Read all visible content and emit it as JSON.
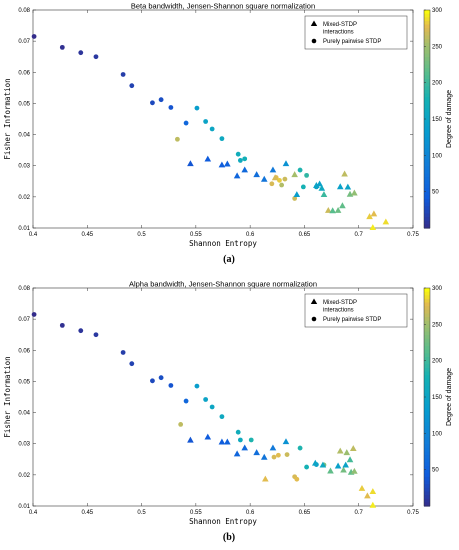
{
  "chart_data": [
    {
      "type": "scatter",
      "title": "Beta bandwidth, Jensen-Shannon square normalization",
      "xlabel": "Shannon Entropy",
      "ylabel": "Fisher Information",
      "xlim": [
        0.4,
        0.75
      ],
      "ylim": [
        0.01,
        0.08
      ],
      "xticks": [
        "0.4",
        "0.45",
        "0.5",
        "0.55",
        "0.6",
        "0.65",
        "0.7",
        "0.75"
      ],
      "yticks": [
        "0.01",
        "0.02",
        "0.03",
        "0.04",
        "0.05",
        "0.06",
        "0.07",
        "0.08"
      ],
      "colorbar": {
        "label": "Degree of damage",
        "range": [
          0,
          300
        ],
        "ticks": [
          "50",
          "100",
          "150",
          "200",
          "250",
          "300"
        ]
      },
      "legend": {
        "position": "top-right",
        "items": [
          "Mixed-STDP interactions",
          "Purely pairwise STDP"
        ]
      },
      "caption": "(a)",
      "series": [
        {
          "name": "Purely pairwise STDP",
          "marker": "circle",
          "points": [
            [
              0.401,
              0.0715,
              2
            ],
            [
              0.427,
              0.068,
              5
            ],
            [
              0.444,
              0.0663,
              10
            ],
            [
              0.458,
              0.065,
              13
            ],
            [
              0.483,
              0.0593,
              18
            ],
            [
              0.491,
              0.0557,
              22
            ],
            [
              0.51,
              0.0502,
              28
            ],
            [
              0.518,
              0.0512,
              32
            ],
            [
              0.527,
              0.0487,
              38
            ],
            [
              0.533,
              0.0385,
              265
            ],
            [
              0.541,
              0.0437,
              60
            ],
            [
              0.551,
              0.0485,
              140
            ],
            [
              0.559,
              0.0442,
              150
            ],
            [
              0.565,
              0.0418,
              155
            ],
            [
              0.574,
              0.0387,
              160
            ],
            [
              0.589,
              0.0337,
              170
            ],
            [
              0.591,
              0.0317,
              165
            ],
            [
              0.595,
              0.0322,
              175
            ],
            [
              0.62,
              0.0242,
              275
            ],
            [
              0.624,
              0.0262,
              280
            ],
            [
              0.627,
              0.0253,
              285
            ],
            [
              0.629,
              0.0238,
              260
            ],
            [
              0.632,
              0.0257,
              270
            ],
            [
              0.641,
              0.0195,
              270
            ],
            [
              0.646,
              0.0286,
              185
            ],
            [
              0.649,
              0.0232,
              180
            ],
            [
              0.652,
              0.0269,
              195
            ],
            [
              0.661,
              0.0232,
              150
            ]
          ]
        },
        {
          "name": "Mixed-STDP interactions",
          "marker": "triangle",
          "points": [
            [
              0.545,
              0.0307,
              40
            ],
            [
              0.561,
              0.0322,
              45
            ],
            [
              0.574,
              0.0303,
              48
            ],
            [
              0.579,
              0.0306,
              52
            ],
            [
              0.588,
              0.0268,
              58
            ],
            [
              0.595,
              0.0287,
              62
            ],
            [
              0.606,
              0.0272,
              70
            ],
            [
              0.613,
              0.0257,
              78
            ],
            [
              0.621,
              0.0287,
              85
            ],
            [
              0.633,
              0.0307,
              120
            ],
            [
              0.623,
              0.0262,
              275
            ],
            [
              0.641,
              0.0272,
              255
            ],
            [
              0.643,
              0.0208,
              140
            ],
            [
              0.661,
              0.0237,
              150
            ],
            [
              0.664,
              0.0242,
              145
            ],
            [
              0.666,
              0.0228,
              160
            ],
            [
              0.668,
              0.0208,
              200
            ],
            [
              0.672,
              0.0157,
              270
            ],
            [
              0.676,
              0.0156,
              215
            ],
            [
              0.681,
              0.0157,
              225
            ],
            [
              0.683,
              0.0233,
              145
            ],
            [
              0.685,
              0.0172,
              220
            ],
            [
              0.687,
              0.0274,
              265
            ],
            [
              0.69,
              0.0232,
              150
            ],
            [
              0.692,
              0.0209,
              230
            ],
            [
              0.696,
              0.0213,
              245
            ],
            [
              0.71,
              0.0137,
              285
            ],
            [
              0.714,
              0.0146,
              280
            ],
            [
              0.725,
              0.012,
              290
            ],
            [
              0.713,
              0.0102,
              295
            ]
          ]
        }
      ]
    },
    {
      "type": "scatter",
      "title": "Alpha bandwidth, Jensen-Shannon square normalization",
      "xlabel": "Shannon Entropy",
      "ylabel": "Fisher Information",
      "xlim": [
        0.4,
        0.75
      ],
      "ylim": [
        0.01,
        0.08
      ],
      "xticks": [
        "0.4",
        "0.45",
        "0.5",
        "0.55",
        "0.6",
        "0.65",
        "0.7",
        "0.75"
      ],
      "yticks": [
        "0.01",
        "0.02",
        "0.03",
        "0.04",
        "0.05",
        "0.06",
        "0.07",
        "0.08"
      ],
      "colorbar": {
        "label": "Degree of damage",
        "range": [
          0,
          300
        ],
        "ticks": [
          "50",
          "100",
          "150",
          "200",
          "250",
          "300"
        ]
      },
      "legend": {
        "position": "top-right",
        "items": [
          "Mixed-STDP interactions",
          "Purely pairwise STDP"
        ]
      },
      "caption": "(b)",
      "series": [
        {
          "name": "Purely pairwise STDP",
          "marker": "circle",
          "points": [
            [
              0.401,
              0.0715,
              2
            ],
            [
              0.427,
              0.068,
              5
            ],
            [
              0.444,
              0.0663,
              10
            ],
            [
              0.458,
              0.065,
              13
            ],
            [
              0.483,
              0.0593,
              18
            ],
            [
              0.491,
              0.0557,
              22
            ],
            [
              0.51,
              0.0502,
              28
            ],
            [
              0.518,
              0.0512,
              32
            ],
            [
              0.527,
              0.0487,
              38
            ],
            [
              0.536,
              0.0362,
              265
            ],
            [
              0.541,
              0.0437,
              60
            ],
            [
              0.551,
              0.0485,
              140
            ],
            [
              0.559,
              0.0442,
              150
            ],
            [
              0.565,
              0.0418,
              155
            ],
            [
              0.574,
              0.0387,
              160
            ],
            [
              0.589,
              0.0337,
              170
            ],
            [
              0.591,
              0.0312,
              165
            ],
            [
              0.601,
              0.0312,
              185
            ],
            [
              0.622,
              0.0257,
              275
            ],
            [
              0.626,
              0.0263,
              280
            ],
            [
              0.634,
              0.0265,
              270
            ],
            [
              0.641,
              0.0194,
              275
            ],
            [
              0.643,
              0.0186,
              280
            ],
            [
              0.646,
              0.0286,
              185
            ],
            [
              0.652,
              0.0225,
              180
            ],
            [
              0.661,
              0.0233,
              150
            ],
            [
              0.668,
              0.0232,
              230
            ]
          ]
        },
        {
          "name": "Mixed-STDP interactions",
          "marker": "triangle",
          "points": [
            [
              0.545,
              0.0312,
              40
            ],
            [
              0.561,
              0.0322,
              45
            ],
            [
              0.574,
              0.0306,
              48
            ],
            [
              0.579,
              0.0306,
              52
            ],
            [
              0.588,
              0.0268,
              58
            ],
            [
              0.595,
              0.0287,
              62
            ],
            [
              0.606,
              0.0272,
              70
            ],
            [
              0.613,
              0.0257,
              78
            ],
            [
              0.614,
              0.0187,
              280
            ],
            [
              0.621,
              0.0287,
              85
            ],
            [
              0.633,
              0.0307,
              120
            ],
            [
              0.66,
              0.0238,
              150
            ],
            [
              0.667,
              0.0232,
              160
            ],
            [
              0.674,
              0.0213,
              220
            ],
            [
              0.681,
              0.0229,
              145
            ],
            [
              0.683,
              0.0277,
              260
            ],
            [
              0.686,
              0.0216,
              230
            ],
            [
              0.688,
              0.0232,
              150
            ],
            [
              0.689,
              0.0272,
              250
            ],
            [
              0.692,
              0.0249,
              205
            ],
            [
              0.693,
              0.0209,
              220
            ],
            [
              0.695,
              0.0285,
              265
            ],
            [
              0.696,
              0.0212,
              245
            ],
            [
              0.703,
              0.0157,
              285
            ],
            [
              0.708,
              0.0133,
              280
            ],
            [
              0.713,
              0.0147,
              290
            ],
            [
              0.713,
              0.0103,
              295
            ]
          ]
        }
      ]
    }
  ]
}
